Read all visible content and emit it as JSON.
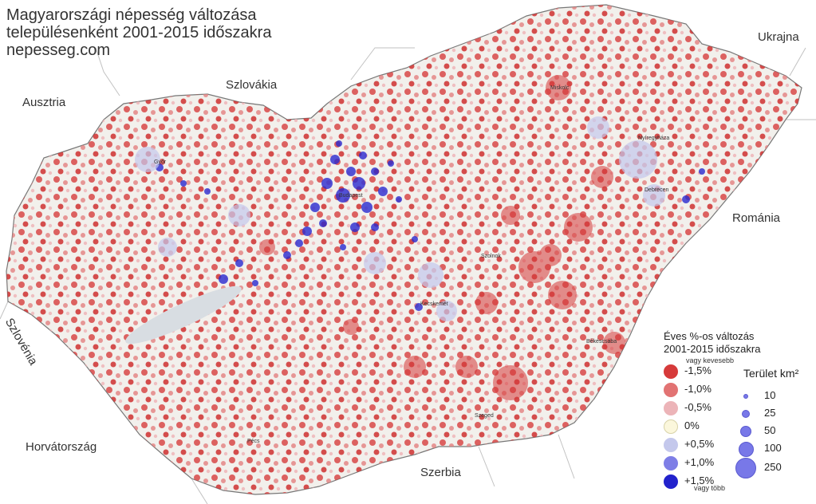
{
  "title": {
    "line1": "Magyarországi népesség változása",
    "line2": "településenként 2001-2015 időszakra",
    "line3": "nepesseg.com"
  },
  "countries": {
    "slovakia": "Szlovákia",
    "ukraine": "Ukrajna",
    "austria": "Ausztria",
    "romania": "Románia",
    "slovenia": "Szlovénia",
    "croatia": "Horvátország",
    "serbia": "Szerbia"
  },
  "cities": {
    "budapest": "Budapest",
    "miskolc": "Miskolc",
    "debrecen": "Debrecen",
    "nyiregyhaza": "Nyíregyháza",
    "gyor": "Győr",
    "szeged": "Szeged",
    "pecs": "Pécs",
    "kecskemet": "Kecskemét",
    "szolnok": "Szolnok",
    "bekescsaba": "Békéscsaba"
  },
  "legend": {
    "title_line1": "Éves %-os változás",
    "title_line2": "2001-2015 időszakra",
    "note_top": "vagy kevesebb",
    "note_bottom": "vagy több",
    "items": [
      {
        "label": "-1,5%",
        "color": "#d63a3a"
      },
      {
        "label": "-1,0%",
        "color": "#e27373"
      },
      {
        "label": "-0,5%",
        "color": "#ecb4b8"
      },
      {
        "label": "0%",
        "color": "#fbf7dc"
      },
      {
        "label": "+0,5%",
        "color": "#c4c8ec"
      },
      {
        "label": "+1,0%",
        "color": "#7e7ee6"
      },
      {
        "label": "+1,5%",
        "color": "#2222cc"
      }
    ]
  },
  "area_legend": {
    "title": "Terület km²",
    "items": [
      {
        "label": "10"
      },
      {
        "label": "25"
      },
      {
        "label": "50"
      },
      {
        "label": "100"
      },
      {
        "label": "250"
      }
    ]
  }
}
